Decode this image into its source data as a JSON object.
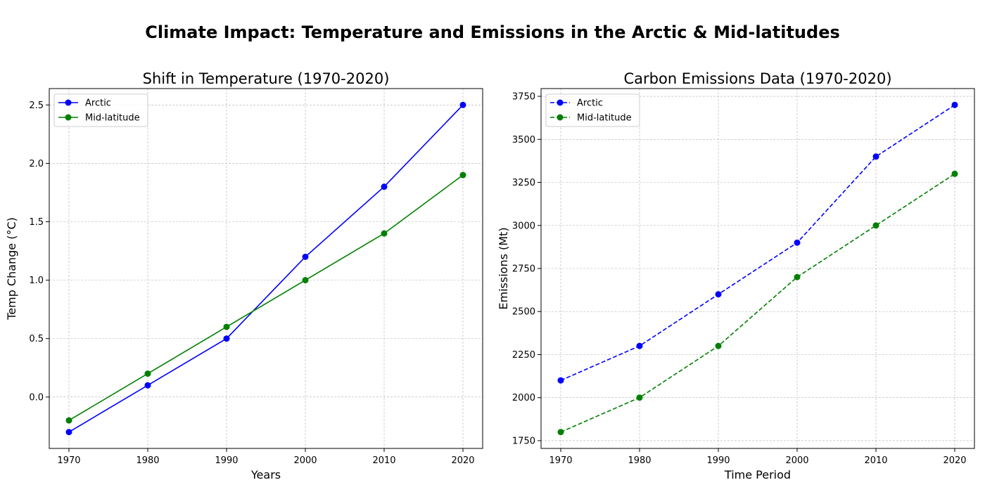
{
  "figure": {
    "title": "Climate Impact: Temperature and Emissions in the Arctic & Mid-latitudes"
  },
  "chart_data": [
    {
      "type": "line",
      "title": "Shift in Temperature (1970-2020)",
      "xlabel": "Years",
      "ylabel": "Temp Change (°C)",
      "x": [
        1970,
        1980,
        1990,
        2000,
        2010,
        2020
      ],
      "xticks": [
        "1970",
        "1980",
        "1990",
        "2000",
        "2010",
        "2020"
      ],
      "yticks": [
        "0.0",
        "0.5",
        "1.0",
        "1.5",
        "2.0",
        "2.5"
      ],
      "ytick_values": [
        0.0,
        0.5,
        1.0,
        1.5,
        2.0,
        2.5
      ],
      "xlim": [
        1967.5,
        2022.5
      ],
      "ylim": [
        -0.44,
        2.64
      ],
      "grid": true,
      "legend_position": "upper-left",
      "series": [
        {
          "name": "Arctic",
          "color": "#0000ff",
          "linestyle": "solid",
          "marker": "circle",
          "values": [
            -0.3,
            0.1,
            0.5,
            1.2,
            1.8,
            2.5
          ]
        },
        {
          "name": "Mid-latitude",
          "color": "#008000",
          "linestyle": "solid",
          "marker": "circle",
          "values": [
            -0.2,
            0.2,
            0.6,
            1.0,
            1.4,
            1.9
          ]
        }
      ]
    },
    {
      "type": "line",
      "title": "Carbon Emissions Data (1970-2020)",
      "xlabel": "Time Period",
      "ylabel": "Emissions (Mt)",
      "x": [
        1970,
        1980,
        1990,
        2000,
        2010,
        2020
      ],
      "xticks": [
        "1970",
        "1980",
        "1990",
        "2000",
        "2010",
        "2020"
      ],
      "yticks": [
        "1750",
        "2000",
        "2250",
        "2500",
        "2750",
        "3000",
        "3250",
        "3500",
        "3750"
      ],
      "ytick_values": [
        1750,
        2000,
        2250,
        2500,
        2750,
        3000,
        3250,
        3500,
        3750
      ],
      "xlim": [
        1967.5,
        2022.5
      ],
      "ylim": [
        1705,
        3795
      ],
      "grid": true,
      "legend_position": "upper-left",
      "series": [
        {
          "name": "Arctic",
          "color": "#0000ff",
          "linestyle": "dashed",
          "marker": "circle",
          "values": [
            2100,
            2300,
            2600,
            2900,
            3400,
            3700
          ]
        },
        {
          "name": "Mid-latitude",
          "color": "#008000",
          "linestyle": "dashed",
          "marker": "circle",
          "values": [
            1800,
            2000,
            2300,
            2700,
            3000,
            3300
          ]
        }
      ]
    }
  ]
}
